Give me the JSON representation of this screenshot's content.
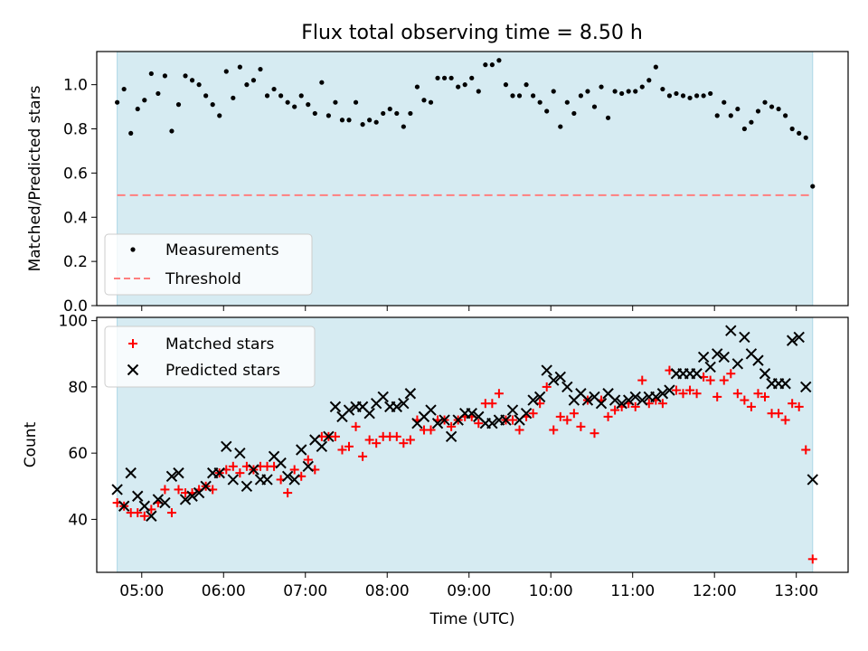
{
  "figure_title": "Flux total observing time = 8.50 h",
  "colors": {
    "shade": "#add8e6",
    "measurement": "#000000",
    "threshold": "#ff7f7f",
    "matched": "#ff0000",
    "predicted": "#000000"
  },
  "chart_data": [
    {
      "type": "scatter",
      "title": "Flux total observing time = 8.50 h",
      "xlabel": "",
      "ylabel": "Matched/Predicted stars",
      "xlim": [
        "04:27",
        "13:38"
      ],
      "ylim": [
        0,
        1.15
      ],
      "y_ticks": [
        "0.0",
        "0.2",
        "0.4",
        "0.6",
        "0.8",
        "1.0"
      ],
      "x_ticks": [
        "05:00",
        "06:00",
        "07:00",
        "08:00",
        "09:00",
        "10:00",
        "11:00",
        "12:00",
        "13:00"
      ],
      "observing_window": [
        "04:42",
        "13:12"
      ],
      "threshold": 0.5,
      "legend_position": "lower-left",
      "legend": [
        "Measurements",
        "Threshold"
      ],
      "series": [
        {
          "name": "Measurements",
          "marker": "dot",
          "x": [
            "04:42",
            "04:47",
            "04:52",
            "04:57",
            "05:02",
            "05:07",
            "05:12",
            "05:17",
            "05:22",
            "05:27",
            "05:32",
            "05:37",
            "05:42",
            "05:47",
            "05:52",
            "05:57",
            "06:02",
            "06:07",
            "06:12",
            "06:17",
            "06:22",
            "06:27",
            "06:32",
            "06:37",
            "06:42",
            "06:47",
            "06:52",
            "06:57",
            "07:02",
            "07:07",
            "07:12",
            "07:17",
            "07:22",
            "07:27",
            "07:32",
            "07:37",
            "07:42",
            "07:47",
            "07:52",
            "07:57",
            "08:02",
            "08:07",
            "08:12",
            "08:17",
            "08:22",
            "08:27",
            "08:32",
            "08:37",
            "08:42",
            "08:47",
            "08:52",
            "08:57",
            "09:02",
            "09:07",
            "09:12",
            "09:17",
            "09:22",
            "09:27",
            "09:32",
            "09:37",
            "09:42",
            "09:47",
            "09:52",
            "09:57",
            "10:02",
            "10:07",
            "10:12",
            "10:17",
            "10:22",
            "10:27",
            "10:32",
            "10:37",
            "10:42",
            "10:47",
            "10:52",
            "10:57",
            "11:02",
            "11:07",
            "11:12",
            "11:17",
            "11:22",
            "11:27",
            "11:32",
            "11:37",
            "11:42",
            "11:47",
            "11:52",
            "11:57",
            "12:02",
            "12:07",
            "12:12",
            "12:17",
            "12:22",
            "12:27",
            "12:32",
            "12:37",
            "12:42",
            "12:47",
            "12:52",
            "12:57",
            "13:02",
            "13:07",
            "13:12"
          ],
          "y": [
            0.92,
            0.98,
            0.78,
            0.89,
            0.93,
            1.05,
            0.96,
            1.04,
            0.79,
            0.91,
            1.04,
            1.02,
            1.0,
            0.95,
            0.91,
            0.86,
            1.06,
            0.94,
            1.08,
            1.0,
            1.02,
            1.07,
            0.95,
            0.98,
            0.95,
            0.92,
            0.9,
            0.95,
            0.91,
            0.87,
            1.01,
            0.86,
            0.92,
            0.84,
            0.84,
            0.92,
            0.82,
            0.84,
            0.83,
            0.87,
            0.89,
            0.87,
            0.81,
            0.87,
            0.99,
            0.93,
            0.92,
            1.03,
            1.03,
            1.03,
            0.99,
            1.0,
            1.03,
            0.97,
            1.09,
            1.09,
            1.11,
            1.0,
            0.95,
            0.95,
            1.0,
            0.95,
            0.92,
            0.88,
            0.97,
            0.81,
            0.92,
            0.87,
            0.95,
            0.97,
            0.9,
            0.99,
            0.85,
            0.97,
            0.96,
            0.97,
            0.97,
            0.99,
            1.02,
            1.08,
            0.98,
            0.95,
            0.96,
            0.95,
            0.94,
            0.95,
            0.95,
            0.96,
            0.86,
            0.92,
            0.86,
            0.89,
            0.8,
            0.83,
            0.88,
            0.92,
            0.9,
            0.89,
            0.86,
            0.8,
            0.78,
            0.76,
            0.54
          ]
        }
      ]
    },
    {
      "type": "scatter",
      "xlabel": "Time (UTC)",
      "ylabel": "Count",
      "xlim": [
        "04:27",
        "13:38"
      ],
      "ylim": [
        24,
        101
      ],
      "y_ticks": [
        "40",
        "60",
        "80",
        "100"
      ],
      "x_ticks": [
        "05:00",
        "06:00",
        "07:00",
        "08:00",
        "09:00",
        "10:00",
        "11:00",
        "12:00",
        "13:00"
      ],
      "observing_window": [
        "04:42",
        "13:12"
      ],
      "legend_position": "upper-left",
      "legend": [
        "Matched stars",
        "Predicted stars"
      ],
      "x": [
        "04:42",
        "04:47",
        "04:52",
        "04:57",
        "05:02",
        "05:07",
        "05:12",
        "05:17",
        "05:22",
        "05:27",
        "05:32",
        "05:37",
        "05:42",
        "05:47",
        "05:52",
        "05:57",
        "06:02",
        "06:07",
        "06:12",
        "06:17",
        "06:22",
        "06:27",
        "06:32",
        "06:37",
        "06:42",
        "06:47",
        "06:52",
        "06:57",
        "07:02",
        "07:07",
        "07:12",
        "07:17",
        "07:22",
        "07:27",
        "07:32",
        "07:37",
        "07:42",
        "07:47",
        "07:52",
        "07:57",
        "08:02",
        "08:07",
        "08:12",
        "08:17",
        "08:22",
        "08:27",
        "08:32",
        "08:37",
        "08:42",
        "08:47",
        "08:52",
        "08:57",
        "09:02",
        "09:07",
        "09:12",
        "09:17",
        "09:22",
        "09:27",
        "09:32",
        "09:37",
        "09:42",
        "09:47",
        "09:52",
        "09:57",
        "10:02",
        "10:07",
        "10:12",
        "10:17",
        "10:22",
        "10:27",
        "10:32",
        "10:37",
        "10:42",
        "10:47",
        "10:52",
        "10:57",
        "11:02",
        "11:07",
        "11:12",
        "11:17",
        "11:22",
        "11:27",
        "11:32",
        "11:37",
        "11:42",
        "11:47",
        "11:52",
        "11:57",
        "12:02",
        "12:07",
        "12:12",
        "12:17",
        "12:22",
        "12:27",
        "12:32",
        "12:37",
        "12:42",
        "12:47",
        "12:52",
        "12:57",
        "13:02",
        "13:07",
        "13:12"
      ],
      "series": [
        {
          "name": "Matched stars",
          "marker": "plus",
          "values": [
            45,
            44,
            42,
            42,
            41,
            43,
            45,
            49,
            42,
            49,
            48,
            48,
            49,
            50,
            49,
            54,
            55,
            56,
            54,
            56,
            55,
            56,
            56,
            56,
            52,
            48,
            55,
            53,
            58,
            55,
            65,
            65,
            65,
            61,
            62,
            68,
            59,
            64,
            63,
            65,
            65,
            65,
            63,
            64,
            70,
            67,
            67,
            70,
            70,
            68,
            70,
            71,
            71,
            69,
            75,
            75,
            78,
            70,
            70,
            67,
            71,
            72,
            75,
            80,
            67,
            71,
            70,
            72,
            68,
            76,
            66,
            76,
            71,
            73,
            74,
            75,
            74,
            82,
            75,
            76,
            75,
            85,
            79,
            78,
            79,
            78,
            83,
            82,
            77,
            82,
            84,
            78,
            76,
            74,
            78,
            77,
            72,
            72,
            70,
            75,
            74,
            61,
            28
          ]
        },
        {
          "name": "Predicted stars",
          "marker": "x",
          "values": [
            49,
            44,
            54,
            47,
            44,
            41,
            46,
            45,
            53,
            54,
            46,
            47,
            48,
            50,
            54,
            54,
            62,
            52,
            60,
            50,
            55,
            52,
            52,
            59,
            57,
            53,
            52,
            61,
            56,
            64,
            62,
            65,
            74,
            71,
            73,
            74,
            74,
            72,
            75,
            77,
            74,
            74,
            75,
            78,
            69,
            71,
            73,
            69,
            70,
            65,
            70,
            72,
            72,
            71,
            69,
            69,
            70,
            70,
            73,
            70,
            72,
            76,
            77,
            85,
            82,
            83,
            80,
            76,
            78,
            76,
            77,
            75,
            78,
            76,
            75,
            76,
            77,
            76,
            77,
            77,
            78,
            79,
            84,
            84,
            84,
            84,
            89,
            86,
            90,
            89,
            97,
            87,
            95,
            90,
            88,
            84,
            81,
            81,
            81,
            94,
            95,
            80,
            52
          ]
        }
      ]
    }
  ]
}
